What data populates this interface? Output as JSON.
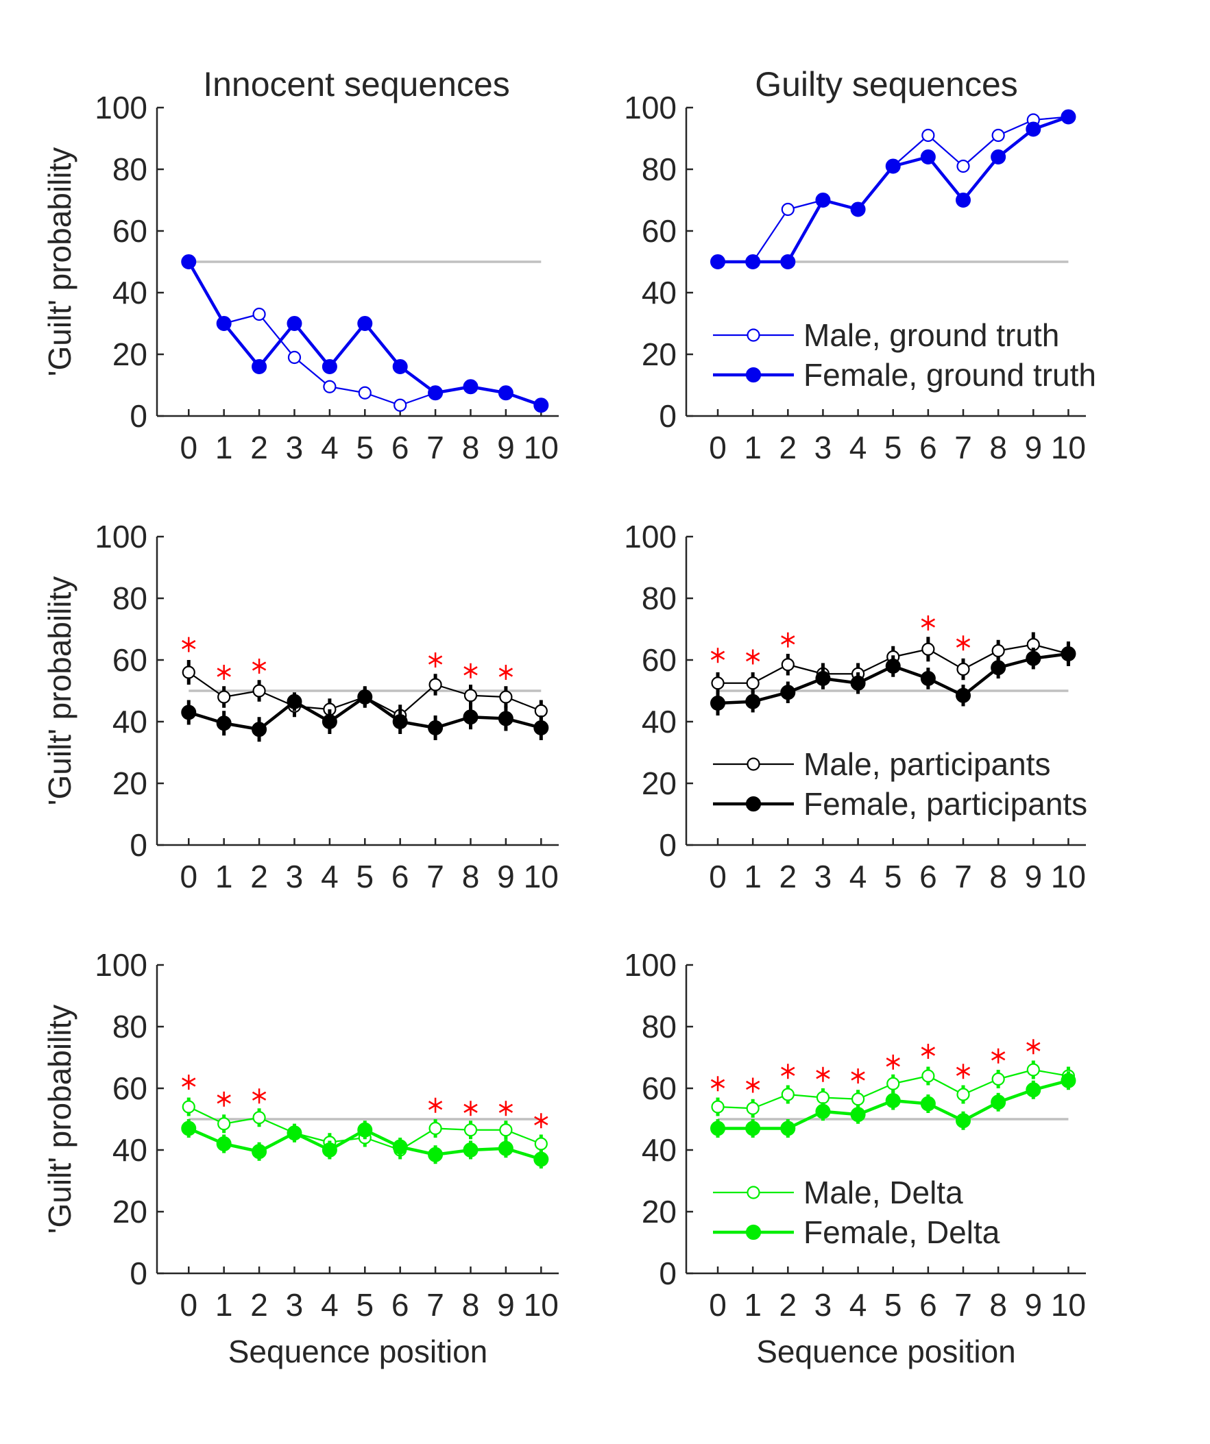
{
  "figure": {
    "column_titles": [
      "Innocent sequences",
      "Guilty sequences"
    ],
    "ylabel": "'Guilt' probability",
    "xlabel": "Sequence position"
  },
  "chart_data": [
    {
      "type": "line",
      "panel": "Innocent sequences / ground truth",
      "title": "Innocent sequences",
      "xlabel": "",
      "ylabel": "'Guilt' probability",
      "x": [
        0,
        1,
        2,
        3,
        4,
        5,
        6,
        7,
        8,
        9,
        10
      ],
      "xlim": [
        -0.9,
        10.5
      ],
      "ylim": [
        0,
        100
      ],
      "yticks": [
        0,
        20,
        40,
        60,
        80,
        100
      ],
      "reference_line": 50,
      "reference_color": "#c0c0c0",
      "color": "#0000ee",
      "series": [
        {
          "name": "Male, ground truth",
          "marker": "open",
          "values": [
            50,
            30,
            33,
            19,
            9.5,
            7.5,
            3.5,
            7.5,
            9.5,
            7.5,
            3.5
          ]
        },
        {
          "name": "Female, ground truth",
          "marker": "filled",
          "values": [
            50,
            30,
            16,
            30,
            16,
            30,
            16,
            7.5,
            9.5,
            7.5,
            3.5
          ]
        }
      ],
      "legend": false
    },
    {
      "type": "line",
      "panel": "Guilty sequences / ground truth",
      "title": "Guilty sequences",
      "xlabel": "",
      "ylabel": "",
      "x": [
        0,
        1,
        2,
        3,
        4,
        5,
        6,
        7,
        8,
        9,
        10
      ],
      "xlim": [
        -0.9,
        10.5
      ],
      "ylim": [
        0,
        100
      ],
      "yticks": [
        0,
        20,
        40,
        60,
        80,
        100
      ],
      "reference_line": 50,
      "reference_color": "#c0c0c0",
      "color": "#0000ee",
      "series": [
        {
          "name": "Male, ground truth",
          "marker": "open",
          "values": [
            50,
            50,
            67,
            70,
            67,
            81,
            91,
            81,
            91,
            96,
            97
          ]
        },
        {
          "name": "Female, ground truth",
          "marker": "filled",
          "values": [
            50,
            50,
            50,
            70,
            67,
            81,
            84,
            70,
            84,
            93,
            97
          ]
        }
      ],
      "legend": true,
      "legend_position": "lower-right"
    },
    {
      "type": "line",
      "panel": "Innocent sequences / participants",
      "title": "",
      "xlabel": "",
      "ylabel": "'Guilt' probability",
      "x": [
        0,
        1,
        2,
        3,
        4,
        5,
        6,
        7,
        8,
        9,
        10
      ],
      "xlim": [
        -0.9,
        10.5
      ],
      "ylim": [
        0,
        100
      ],
      "yticks": [
        0,
        20,
        40,
        60,
        80,
        100
      ],
      "reference_line": 50,
      "reference_color": "#c0c0c0",
      "color": "#000000",
      "significance_color": "#ff0000",
      "significant_positions": [
        0,
        1,
        2,
        7,
        8,
        9
      ],
      "significance_y": [
        65,
        56,
        58,
        60,
        56.5,
        56
      ],
      "series": [
        {
          "name": "Male, participants",
          "marker": "open",
          "values": [
            56,
            48,
            50,
            45,
            44,
            48,
            42,
            52,
            48.5,
            48,
            43.5
          ],
          "errors": [
            4,
            3.5,
            3.5,
            3.5,
            3.5,
            3.5,
            3.5,
            3.5,
            3.5,
            3.5,
            3.5
          ]
        },
        {
          "name": "Female, participants",
          "marker": "filled",
          "values": [
            43,
            39.5,
            37.5,
            46.5,
            40,
            48,
            40,
            38,
            41.5,
            41,
            38
          ],
          "errors": [
            4,
            4,
            4,
            3,
            4,
            3,
            4,
            4,
            4,
            4,
            4
          ]
        }
      ],
      "legend": false
    },
    {
      "type": "line",
      "panel": "Guilty sequences / participants",
      "title": "",
      "xlabel": "",
      "ylabel": "",
      "x": [
        0,
        1,
        2,
        3,
        4,
        5,
        6,
        7,
        8,
        9,
        10
      ],
      "xlim": [
        -0.9,
        10.5
      ],
      "ylim": [
        0,
        100
      ],
      "yticks": [
        0,
        20,
        40,
        60,
        80,
        100
      ],
      "reference_line": 50,
      "reference_color": "#c0c0c0",
      "color": "#000000",
      "significance_color": "#ff0000",
      "significant_positions": [
        0,
        1,
        2,
        6,
        7
      ],
      "significance_y": [
        61.5,
        61,
        66.5,
        72,
        65.5
      ],
      "series": [
        {
          "name": "Male, participants",
          "marker": "open",
          "values": [
            52.5,
            52.5,
            58.5,
            55.5,
            55.5,
            61,
            63.5,
            57,
            63,
            65,
            62
          ],
          "errors": [
            3.5,
            3.5,
            3.5,
            3.5,
            3.5,
            3.5,
            4,
            3.5,
            3.5,
            4,
            4
          ]
        },
        {
          "name": "Female, participants",
          "marker": "filled",
          "values": [
            46,
            46.5,
            49.5,
            54,
            52.5,
            58,
            54,
            48.5,
            57.5,
            60.5,
            62
          ],
          "errors": [
            4,
            3.5,
            3.5,
            3.5,
            3.5,
            3.5,
            3.5,
            3.5,
            3.5,
            3.5,
            3.5
          ]
        }
      ],
      "legend": true,
      "legend_position": "lower-right"
    },
    {
      "type": "line",
      "panel": "Innocent sequences / Delta",
      "title": "",
      "xlabel": "Sequence position",
      "ylabel": "'Guilt' probability",
      "x": [
        0,
        1,
        2,
        3,
        4,
        5,
        6,
        7,
        8,
        9,
        10
      ],
      "xlim": [
        -0.9,
        10.5
      ],
      "ylim": [
        0,
        100
      ],
      "yticks": [
        0,
        20,
        40,
        60,
        80,
        100
      ],
      "reference_line": 50,
      "reference_color": "#c0c0c0",
      "color": "#00ee00",
      "significance_color": "#ff0000",
      "significant_positions": [
        0,
        1,
        2,
        7,
        8,
        9,
        10
      ],
      "significance_y": [
        62,
        56.5,
        57.5,
        54.5,
        53.5,
        53.5,
        49.5
      ],
      "series": [
        {
          "name": "Male, Delta",
          "marker": "open",
          "values": [
            54,
            48.5,
            50.5,
            45.5,
            42.5,
            44,
            40,
            47,
            46.5,
            46.5,
            42
          ],
          "errors": [
            3,
            3,
            3,
            3,
            3,
            3,
            3,
            3,
            3,
            3,
            3
          ]
        },
        {
          "name": "Female, Delta",
          "marker": "filled",
          "values": [
            47,
            42,
            39.5,
            45.5,
            40,
            46.5,
            41,
            38.5,
            40,
            40.5,
            37
          ],
          "errors": [
            3,
            3,
            3,
            3,
            3,
            3,
            3,
            3,
            3,
            3,
            3
          ]
        }
      ],
      "legend": false
    },
    {
      "type": "line",
      "panel": "Guilty sequences / Delta",
      "title": "",
      "xlabel": "Sequence position",
      "ylabel": "",
      "x": [
        0,
        1,
        2,
        3,
        4,
        5,
        6,
        7,
        8,
        9,
        10
      ],
      "xlim": [
        -0.9,
        10.5
      ],
      "ylim": [
        0,
        100
      ],
      "yticks": [
        0,
        20,
        40,
        60,
        80,
        100
      ],
      "reference_line": 50,
      "reference_color": "#c0c0c0",
      "color": "#00ee00",
      "significance_color": "#ff0000",
      "significant_positions": [
        0,
        1,
        2,
        3,
        4,
        5,
        6,
        7,
        8,
        9
      ],
      "significance_y": [
        61.5,
        61,
        65.5,
        64.5,
        64,
        68.5,
        72,
        65.5,
        70.5,
        73.5
      ],
      "series": [
        {
          "name": "Male, Delta",
          "marker": "open",
          "values": [
            54,
            53.5,
            58,
            57,
            56.5,
            61.5,
            64,
            58,
            63,
            66,
            64
          ],
          "errors": [
            3,
            3,
            3,
            3,
            3,
            3,
            3,
            3,
            3,
            3,
            3
          ]
        },
        {
          "name": "Female, Delta",
          "marker": "filled",
          "values": [
            47,
            47,
            47,
            52.5,
            51.5,
            56,
            55,
            49.5,
            55.5,
            59.5,
            62.5
          ],
          "errors": [
            3,
            3,
            3,
            3,
            3,
            3,
            3,
            3,
            3,
            3,
            3
          ]
        }
      ],
      "legend": true,
      "legend_position": "lower-right"
    }
  ]
}
